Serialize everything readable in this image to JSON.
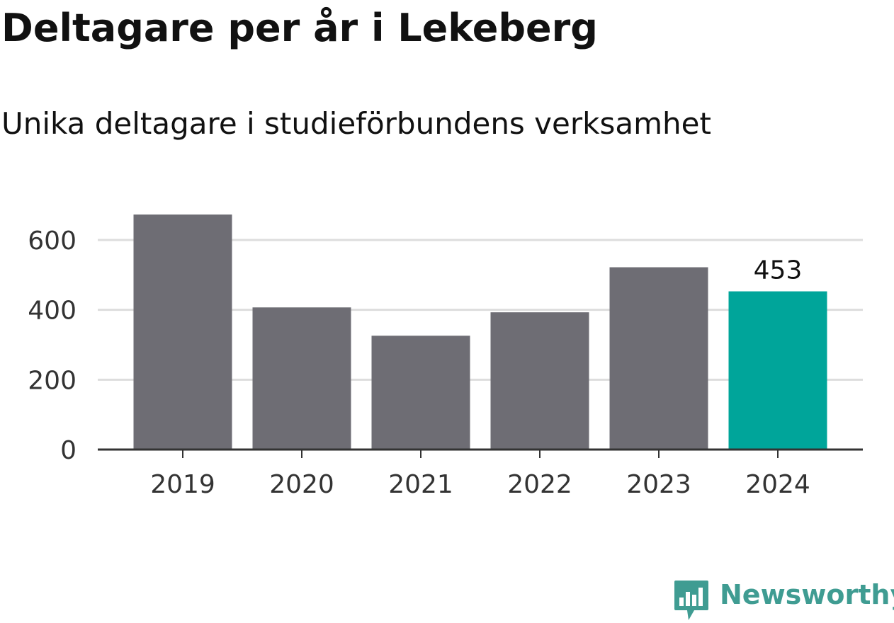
{
  "title": "Deltagare per år i Lekeberg",
  "subtitle": "Unika deltagare i studieförbundens verksamhet",
  "brand": {
    "name": "Newsworthy",
    "color": "#3f9c92",
    "icon": "newsworthy-logo-icon"
  },
  "colors": {
    "bar_default": "#6e6d74",
    "bar_highlight": "#00a59a",
    "grid": "#dddddd",
    "axis": "#333333",
    "tick_text": "#333333",
    "value_label": "#111111"
  },
  "chart_data": {
    "type": "bar",
    "categories": [
      "2019",
      "2020",
      "2021",
      "2022",
      "2023",
      "2024"
    ],
    "values": [
      673,
      407,
      326,
      393,
      522,
      453
    ],
    "highlight_index": 5,
    "data_labels": [
      {
        "index": 5,
        "text": "453"
      }
    ],
    "ylim": [
      0,
      700
    ],
    "yticks": [
      0,
      200,
      400,
      600
    ],
    "ytick_labels": [
      "0",
      "200",
      "400",
      "600"
    ],
    "grid": true,
    "legend": "none",
    "xlabel": "",
    "ylabel": ""
  }
}
